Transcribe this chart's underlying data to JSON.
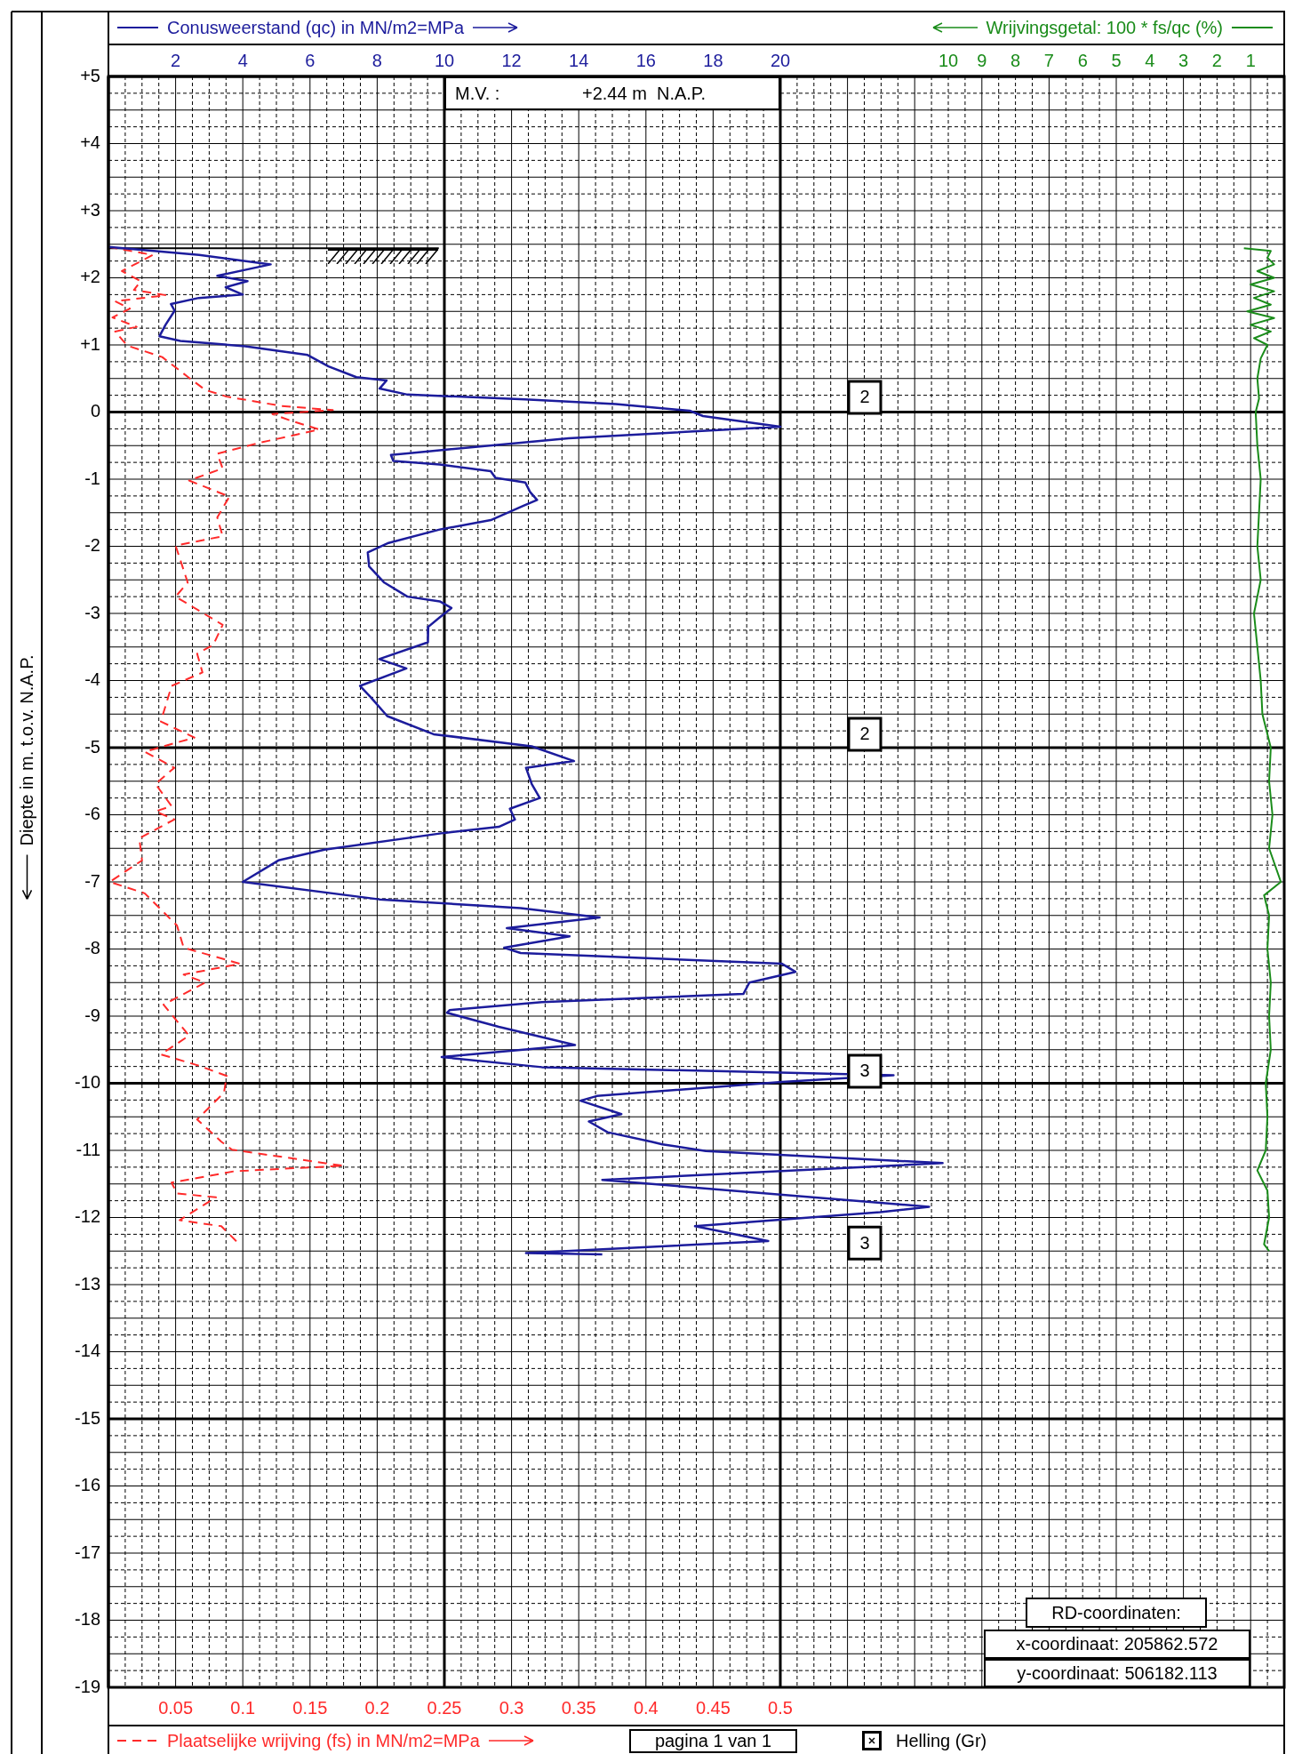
{
  "chart_data": [
    {
      "type": "line",
      "x2label": "Conusweerstand (qc) in MN/m2=MPa",
      "xlabel": "Plaatselijke wrijving (fs) in MN/m2=MPa",
      "ylabel": "Diepte in m. t.o.v. N.A.P.",
      "xlim": [
        0,
        0.875
      ],
      "xticks": [
        0.05,
        0.1,
        0.15,
        0.2,
        0.25,
        0.3,
        0.35,
        0.4,
        0.45,
        0.5
      ],
      "x2lim": [
        0,
        35
      ],
      "x2ticks": [
        2,
        4,
        6,
        8,
        10,
        12,
        14,
        16,
        18,
        20
      ],
      "ylim": [
        -19,
        5
      ],
      "yticks": [
        {
          "value": 5,
          "label": "+5"
        },
        {
          "value": 4,
          "label": "+4"
        },
        {
          "value": 3,
          "label": "+3"
        },
        {
          "value": 2,
          "label": "+2"
        },
        {
          "value": 1,
          "label": "+1"
        },
        0,
        -1,
        -2,
        -3,
        -4,
        -5,
        -6,
        -7,
        -8,
        -9,
        -10,
        -11,
        -12,
        -13,
        -14,
        -15,
        -16,
        -17,
        -18,
        -19
      ],
      "grid": true,
      "ref_lines": [
        {
          "axis": "y",
          "value": 2.44,
          "color": "#000000"
        }
      ],
      "annotations": [
        "M.V. :",
        "+2.44 m  N.A.P.",
        {
          "text": "2",
          "y": 0.22
        },
        {
          "text": "2",
          "y": -4.8
        },
        {
          "text": "3",
          "y": -9.82
        },
        {
          "text": "3",
          "y": -12.38
        },
        "RD-coordinaten:",
        "x-coordinaat: 205862.572",
        "y-coordinaat: 506182.113",
        "pagina 1 van 1",
        "Helling (Gr)"
      ],
      "series": [
        {
          "axis": "x2",
          "color": "#1c1c9c",
          "x": [
            0,
            2.7,
            4.83,
            3.24,
            4.14,
            3.49,
            4.0,
            2.69,
            1.86,
            1.97,
            1.7,
            1.52,
            2.14,
            4.07,
            5.93,
            6.55,
            7.38,
            8.28,
            8.07,
            8.9,
            12.4,
            15.1,
            17.3,
            17.7,
            20.0,
            13.7,
            9.86,
            8.41,
            8.48,
            9.86,
            11.38,
            11.52,
            12.41,
            12.55,
            12.76,
            12.34,
            11.38,
            9.86,
            8.34,
            7.72,
            7.76,
            8.21,
            8.9,
            9.86,
            10.21,
            9.86,
            9.52,
            9.51,
            8.06,
            8.87,
            7.49,
            7.81,
            8.3,
            9.68,
            12.6,
            13.86,
            12.43,
            12.6,
            12.84,
            11.95,
            12.1,
            11.62,
            10.0,
            6.43,
            5.06,
            4.0,
            8.06,
            12.27,
            14.62,
            11.86,
            13.73,
            11.78,
            12.27,
            20.05,
            20.45,
            19.08,
            18.9,
            12.9,
            10.16,
            10.08,
            11.62,
            13.89,
            9.92,
            12.9,
            23.37,
            20.05,
            14.54,
            14.05,
            15.27,
            14.3,
            14.86,
            16.16,
            16.49,
            17.78,
            24.83,
            14.7,
            24.43,
            22.97,
            17.46,
            19.64,
            12.43,
            14.7
          ],
          "values": [
            2.46,
            2.34,
            2.2,
            2.03,
            1.95,
            1.86,
            1.75,
            1.7,
            1.61,
            1.51,
            1.3,
            1.13,
            1.06,
            0.98,
            0.85,
            0.68,
            0.52,
            0.47,
            0.35,
            0.26,
            0.19,
            0.12,
            0.02,
            -0.06,
            -0.22,
            -0.39,
            -0.57,
            -0.64,
            -0.73,
            -0.78,
            -0.88,
            -0.98,
            -1.05,
            -1.19,
            -1.31,
            -1.4,
            -1.61,
            -1.75,
            -1.95,
            -2.09,
            -2.3,
            -2.54,
            -2.75,
            -2.82,
            -2.92,
            -3.06,
            -3.2,
            -3.43,
            -3.68,
            -3.82,
            -4.08,
            -4.25,
            -4.53,
            -4.8,
            -4.98,
            -5.2,
            -5.3,
            -5.54,
            -5.75,
            -5.91,
            -6.07,
            -6.18,
            -6.27,
            -6.52,
            -6.68,
            -7.0,
            -7.26,
            -7.39,
            -7.53,
            -7.69,
            -7.81,
            -7.98,
            -8.06,
            -8.22,
            -8.34,
            -8.5,
            -8.67,
            -8.79,
            -8.91,
            -8.95,
            -9.16,
            -9.43,
            -9.61,
            -9.76,
            -9.88,
            -9.98,
            -10.19,
            -10.26,
            -10.46,
            -10.57,
            -10.73,
            -10.87,
            -10.91,
            -11.01,
            -11.19,
            -11.44,
            -11.84,
            -11.92,
            -12.13,
            -12.35,
            -12.53,
            -12.55
          ]
        },
        {
          "color": "#ff2a2a",
          "line_style": "dashed",
          "x": [
            0.0,
            0.033,
            0.01,
            0.024,
            0.019,
            0.043,
            0.005,
            0.016,
            0.003,
            0.021,
            0.005,
            0.014,
            0.04,
            0.06,
            0.072,
            0.088,
            0.129,
            0.167,
            0.122,
            0.136,
            0.157,
            0.112,
            0.081,
            0.085,
            0.06,
            0.09,
            0.081,
            0.085,
            0.05,
            0.059,
            0.05,
            0.085,
            0.078,
            0.066,
            0.07,
            0.047,
            0.039,
            0.064,
            0.027,
            0.049,
            0.035,
            0.047,
            0.035,
            0.049,
            0.023,
            0.025,
            0.001,
            0.027,
            0.051,
            0.056,
            0.098,
            0.056,
            0.072,
            0.041,
            0.06,
            0.039,
            0.066,
            0.088,
            0.086,
            0.066,
            0.084,
            0.092,
            0.175,
            0.094,
            0.047,
            0.051,
            0.08,
            0.053,
            0.084,
            0.096
          ],
          "values": [
            2.46,
            2.34,
            2.1,
            1.95,
            1.82,
            1.74,
            1.65,
            1.54,
            1.41,
            1.27,
            1.2,
            0.99,
            0.82,
            0.51,
            0.33,
            0.23,
            0.09,
            0.03,
            -0.03,
            -0.13,
            -0.26,
            -0.46,
            -0.62,
            -0.84,
            -1.02,
            -1.26,
            -1.57,
            -1.85,
            -1.99,
            -2.54,
            -2.75,
            -3.17,
            -3.47,
            -3.6,
            -3.88,
            -4.08,
            -4.61,
            -4.85,
            -5.06,
            -5.3,
            -5.54,
            -5.87,
            -5.95,
            -6.07,
            -6.35,
            -6.68,
            -7.0,
            -7.17,
            -7.65,
            -7.98,
            -8.22,
            -8.38,
            -8.5,
            -8.83,
            -9.29,
            -9.57,
            -9.73,
            -9.89,
            -10.14,
            -10.54,
            -10.87,
            -10.99,
            -11.23,
            -11.31,
            -11.48,
            -11.64,
            -11.7,
            -12.04,
            -12.13,
            -12.37
          ]
        }
      ]
    },
    {
      "type": "line",
      "xlabel": "Wrijvingsgetal: 100 * fs/qc (%)",
      "xlim": [
        10,
        0
      ],
      "xticks": [
        10,
        9,
        8,
        7,
        6,
        5,
        4,
        3,
        2,
        1
      ],
      "ylim": [
        -19,
        5
      ],
      "tick_labels": "x",
      "series": [
        {
          "color": "#1a8c1a",
          "x": [
            1.2,
            0.4,
            0.5,
            0.3,
            0.8,
            0.3,
            1.0,
            0.3,
            0.9,
            0.4,
            1.1,
            0.3,
            1.0,
            0.4,
            0.9,
            0.5,
            0.7,
            0.8,
            0.75,
            0.85,
            0.8,
            0.7,
            0.75,
            0.8,
            0.7,
            0.9,
            0.8,
            0.7,
            0.65,
            0.4,
            0.45,
            0.35,
            0.45,
            0.1,
            0.6,
            0.45,
            0.5,
            0.4,
            0.45,
            0.4,
            0.55,
            0.5,
            0.55,
            0.8,
            0.5,
            0.45,
            0.6,
            0.45
          ],
          "values": [
            2.44,
            2.4,
            2.3,
            2.2,
            2.1,
            2.0,
            1.9,
            1.8,
            1.7,
            1.6,
            1.5,
            1.4,
            1.3,
            1.2,
            1.1,
            1.0,
            0.8,
            0.5,
            0.2,
            0,
            -0.5,
            -1,
            -1.5,
            -2,
            -2.5,
            -3,
            -3.5,
            -4,
            -4.5,
            -5,
            -5.5,
            -6,
            -6.5,
            -7,
            -7.2,
            -7.5,
            -8,
            -8.5,
            -9,
            -9.5,
            -10,
            -10.5,
            -11,
            -11.3,
            -11.6,
            -12,
            -12.4,
            -12.5
          ]
        }
      ]
    }
  ]
}
